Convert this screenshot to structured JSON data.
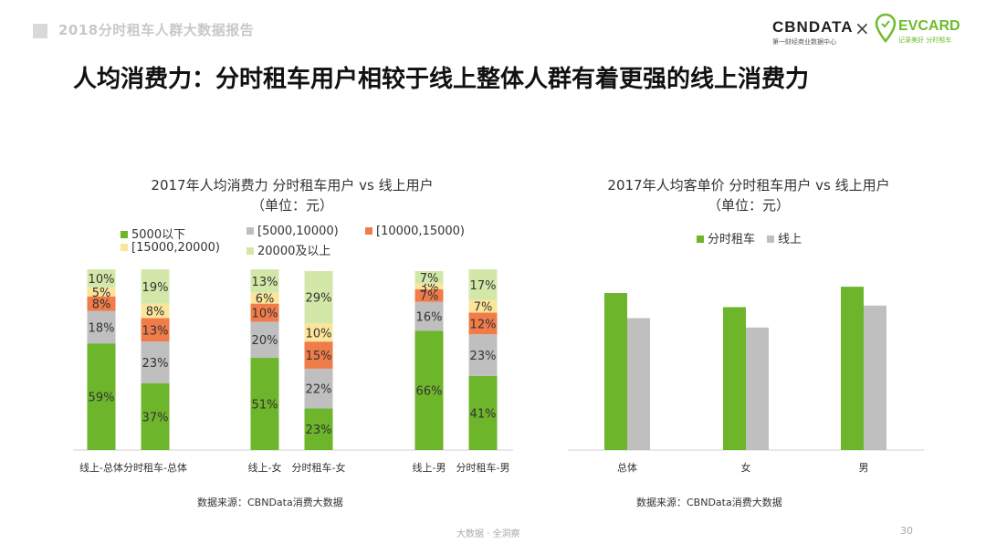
{
  "header": {
    "title": "2018分时租车人群大数据报告"
  },
  "logos": {
    "cbn_mark": "CBNDATA",
    "cbn_sub": "第一财经商业数据中心",
    "separator": "×",
    "evcard_mark": "EVCARD",
    "evcard_sub": "记录美好 分时租车"
  },
  "main_title": "人均消费力：分时租车用户相较于线上整体人群有着更强的线上消费力",
  "colors": {
    "green": "#6db52b",
    "gray": "#bfbfbf",
    "orange": "#f07c4a",
    "yellow": "#fbe59a",
    "lightgreen": "#d3e8a8",
    "evcard_green": "#6dbb2a"
  },
  "chart_data": [
    {
      "type": "bar",
      "stacked": true,
      "title": "2017年人均消费力 分时租车用户 vs 线上用户",
      "subtitle": "（单位：元）",
      "categories": [
        "线上-总体",
        "分时租车-总体",
        "线上-女",
        "分时租车-女",
        "线上-男",
        "分时租车-男"
      ],
      "series": [
        {
          "name": "5000以下",
          "values": [
            59,
            37,
            51,
            23,
            66,
            41
          ]
        },
        {
          "name": "[5000,10000)",
          "values": [
            18,
            23,
            20,
            22,
            16,
            23
          ]
        },
        {
          "name": "[10000,15000)",
          "values": [
            8,
            13,
            10,
            15,
            7,
            12
          ]
        },
        {
          "name": "[15000,20000)",
          "values": [
            5,
            8,
            6,
            10,
            3,
            7
          ]
        },
        {
          "name": "20000及以上",
          "values": [
            10,
            19,
            13,
            29,
            7,
            17
          ]
        }
      ],
      "series_colors": [
        "green",
        "gray",
        "orange",
        "yellow",
        "lightgreen"
      ],
      "value_suffix": "%",
      "ylim": [
        0,
        100
      ],
      "legend_position": "top",
      "source": "数据来源：CBNData消费大数据"
    },
    {
      "type": "bar",
      "title": "2017年人均客单价 分时租车用户 vs 线上用户",
      "subtitle": "（单位：元）",
      "categories": [
        "总体",
        "女",
        "男"
      ],
      "series": [
        {
          "name": "分时租车",
          "values": [
            100,
            91,
            104
          ]
        },
        {
          "name": "线上",
          "values": [
            84,
            78,
            92
          ]
        }
      ],
      "series_colors": [
        "green",
        "gray"
      ],
      "legend_position": "top",
      "source": "数据来源：CBNData消费大数据"
    }
  ],
  "footer": {
    "text": "大数据 · 全洞察",
    "page_number": "30"
  }
}
